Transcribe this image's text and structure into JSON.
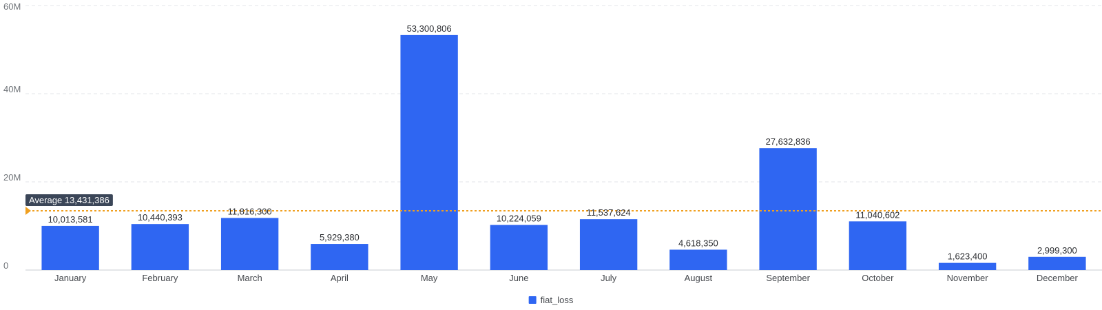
{
  "chart_data": {
    "type": "bar",
    "categories": [
      "January",
      "February",
      "March",
      "April",
      "May",
      "June",
      "July",
      "August",
      "September",
      "October",
      "November",
      "December"
    ],
    "series": [
      {
        "name": "fiat_loss",
        "values": [
          10013581,
          10440393,
          11816300,
          5929380,
          53300806,
          10224059,
          11537624,
          4618350,
          27632836,
          11040602,
          1623400,
          2999300
        ],
        "value_labels": [
          "10,013,581",
          "10,440,393",
          "11,816,300",
          "5,929,380",
          "53,300,806",
          "10,224,059",
          "11,537,624",
          "4,618,350",
          "27,632,836",
          "11,040,602",
          "1,623,400",
          "2,999,300"
        ]
      }
    ],
    "ylim": [
      0,
      60000000
    ],
    "yticks": [
      0,
      20000000,
      40000000,
      60000000
    ],
    "ytick_labels": [
      "0",
      "20M",
      "40M",
      "60M"
    ],
    "grid": true,
    "legend_position": "bottom-center",
    "average": {
      "value": 13431386,
      "label": "Average 13,431,386"
    },
    "title": "",
    "xlabel": "",
    "ylabel": "",
    "colors": {
      "bar": "#2f66f2",
      "average_line": "#f0a020",
      "average_badge": "#3b4658",
      "grid": "#e3e5e8",
      "axis": "#c9ccd1"
    }
  }
}
